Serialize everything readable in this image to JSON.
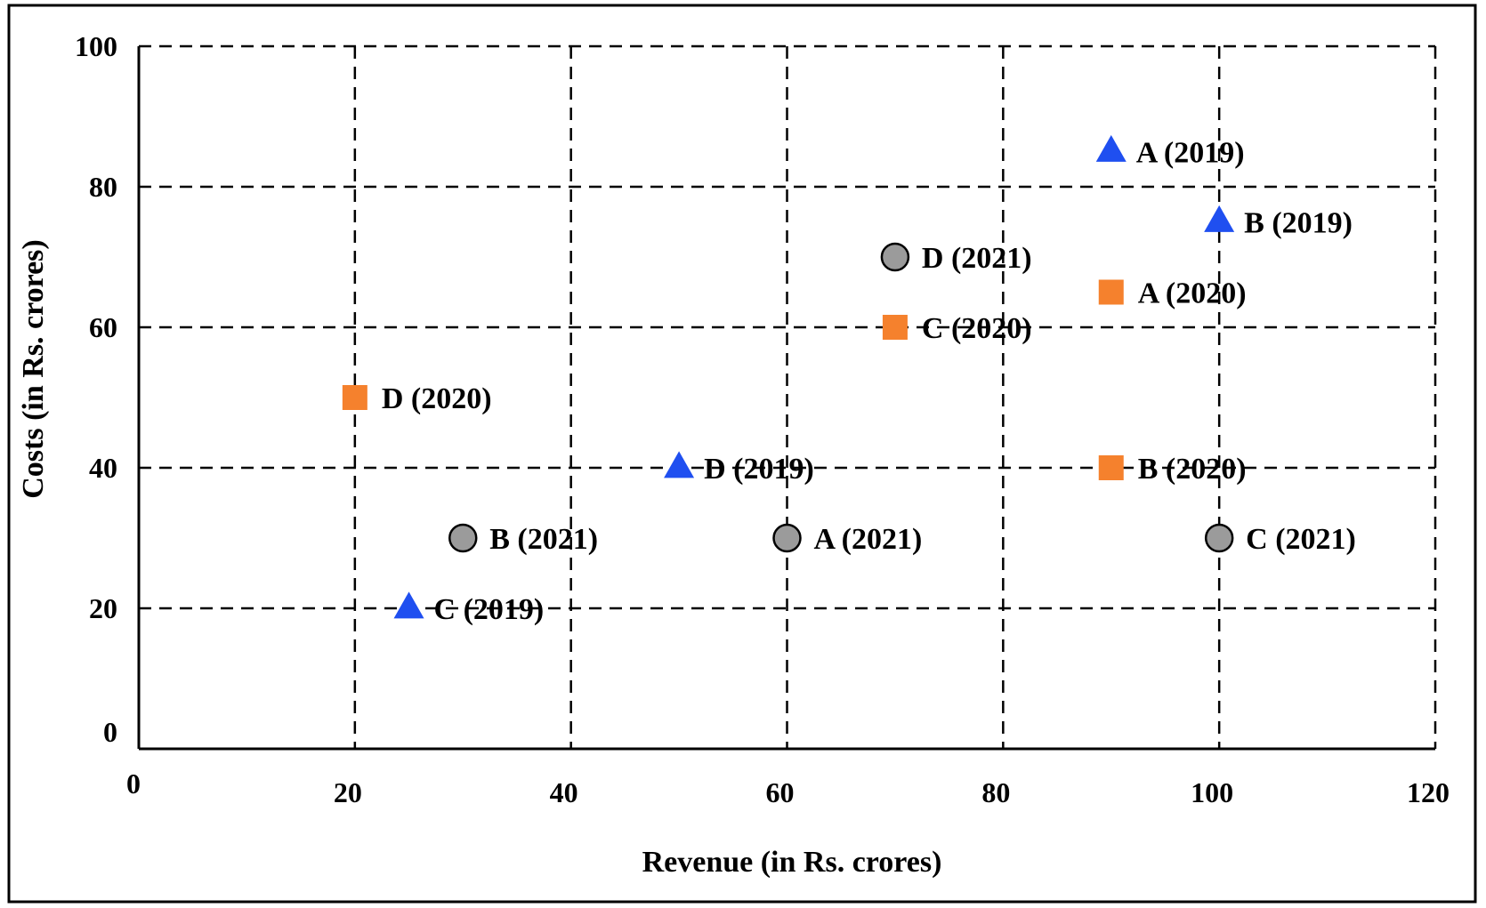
{
  "chart_data": {
    "type": "scatter",
    "title": "",
    "xlabel": "Revenue (in Rs. crores)",
    "ylabel": "Costs (in Rs. crores)",
    "xlim": [
      0,
      120
    ],
    "ylim": [
      0,
      100
    ],
    "x_ticks": [
      0,
      20,
      40,
      60,
      80,
      100,
      120
    ],
    "y_ticks": [
      0,
      20,
      40,
      60,
      80,
      100
    ],
    "grid": true,
    "legend": "none",
    "series": [
      {
        "year": "2019",
        "marker": "triangle",
        "color": "#1f4ff0",
        "points": [
          {
            "label": "A (2019)",
            "x": 90,
            "y": 85
          },
          {
            "label": "B (2019)",
            "x": 100,
            "y": 75
          },
          {
            "label": "C (2019)",
            "x": 25,
            "y": 20
          },
          {
            "label": "D (2019)",
            "x": 50,
            "y": 40
          }
        ]
      },
      {
        "year": "2020",
        "marker": "square",
        "color": "#f5812d",
        "points": [
          {
            "label": "A (2020)",
            "x": 90,
            "y": 65
          },
          {
            "label": "B (2020)",
            "x": 90,
            "y": 40
          },
          {
            "label": "C (2020)",
            "x": 70,
            "y": 60
          },
          {
            "label": "D (2020)",
            "x": 20,
            "y": 50
          }
        ]
      },
      {
        "year": "2021",
        "marker": "circle",
        "color": "#9b9b9b",
        "points": [
          {
            "label": "A (2021)",
            "x": 60,
            "y": 30
          },
          {
            "label": "B (2021)",
            "x": 30,
            "y": 30
          },
          {
            "label": "C (2021)",
            "x": 100,
            "y": 30
          },
          {
            "label": "D (2021)",
            "x": 70,
            "y": 70
          }
        ]
      }
    ]
  }
}
